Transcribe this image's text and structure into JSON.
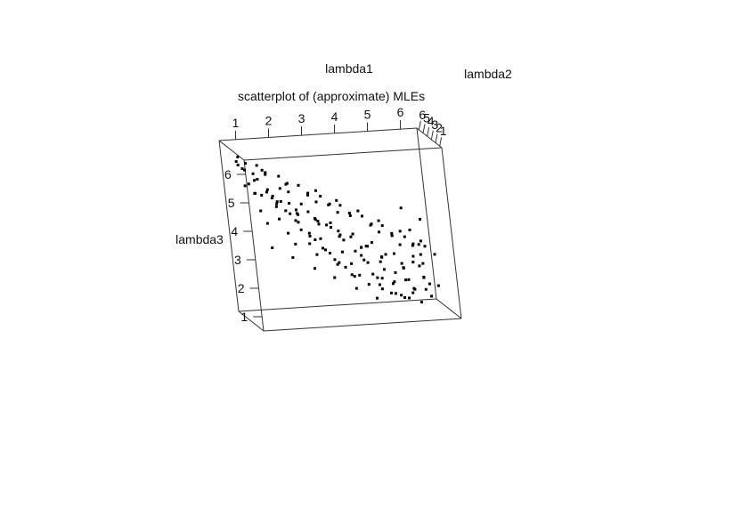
{
  "chart_data": {
    "type": "scatter",
    "projection": "3d",
    "title": "scatterplot of (approximate) MLEs",
    "xlabel": "lambda1",
    "ylabel": "lambda2",
    "zlabel": "lambda3",
    "x_ticks": [
      "1",
      "2",
      "3",
      "4",
      "5",
      "6"
    ],
    "y_ticks": [
      "1",
      "2",
      "3",
      "4",
      "5",
      "6"
    ],
    "z_ticks": [
      "1",
      "2",
      "3",
      "4",
      "5",
      "6"
    ],
    "xlim": [
      0.5,
      6.5
    ],
    "ylim": [
      0.5,
      6.5
    ],
    "zlim": [
      0.5,
      6.5
    ],
    "grid": false,
    "point_color": "#000000",
    "points": [
      [
        0.6,
        3.5,
        6.1
      ],
      [
        0.7,
        3.0,
        5.9
      ],
      [
        0.9,
        4.2,
        5.7
      ],
      [
        0.8,
        2.6,
        5.4
      ],
      [
        1.1,
        3.8,
        5.6
      ],
      [
        1.2,
        2.2,
        5.9
      ],
      [
        1.3,
        4.6,
        5.3
      ],
      [
        1.4,
        3.1,
        5.1
      ],
      [
        1.5,
        2.8,
        4.9
      ],
      [
        1.6,
        3.9,
        4.7
      ],
      [
        1.7,
        2.4,
        5.2
      ],
      [
        1.8,
        4.4,
        4.5
      ],
      [
        1.9,
        3.3,
        4.3
      ],
      [
        2.0,
        2.9,
        5.0
      ],
      [
        2.1,
        4.0,
        4.1
      ],
      [
        2.2,
        3.6,
        3.9
      ],
      [
        2.3,
        2.5,
        4.6
      ],
      [
        2.4,
        4.7,
        3.7
      ],
      [
        2.5,
        3.0,
        3.5
      ],
      [
        2.6,
        3.8,
        3.3
      ],
      [
        2.7,
        2.7,
        4.0
      ],
      [
        2.8,
        4.3,
        3.1
      ],
      [
        2.9,
        3.4,
        2.9
      ],
      [
        3.0,
        2.6,
        3.8
      ],
      [
        3.1,
        4.5,
        2.7
      ],
      [
        3.2,
        3.2,
        2.5
      ],
      [
        3.3,
        2.3,
        3.6
      ],
      [
        3.4,
        3.9,
        2.3
      ],
      [
        3.5,
        2.9,
        3.2
      ],
      [
        3.6,
        4.1,
        2.1
      ],
      [
        3.7,
        3.5,
        1.9
      ],
      [
        3.8,
        2.8,
        2.8
      ],
      [
        3.9,
        4.6,
        1.7
      ],
      [
        4.0,
        3.1,
        2.6
      ],
      [
        4.1,
        2.4,
        3.0
      ],
      [
        4.2,
        3.7,
        1.5
      ],
      [
        4.3,
        4.2,
        2.2
      ],
      [
        4.4,
        3.0,
        1.8
      ],
      [
        4.5,
        2.6,
        2.4
      ],
      [
        4.6,
        3.8,
        1.3
      ],
      [
        4.7,
        4.4,
        1.6
      ],
      [
        4.8,
        3.3,
        1.2
      ],
      [
        4.9,
        2.5,
        2.0
      ],
      [
        5.0,
        3.9,
        1.1
      ],
      [
        5.1,
        4.8,
        1.4
      ],
      [
        5.2,
        3.4,
        1.0
      ],
      [
        5.3,
        2.7,
        1.7
      ],
      [
        5.4,
        4.0,
        0.9
      ],
      [
        5.5,
        3.1,
        1.3
      ],
      [
        5.6,
        4.6,
        1.0
      ],
      [
        1.0,
        5.4,
        5.0
      ],
      [
        1.5,
        5.7,
        4.6
      ],
      [
        2.0,
        5.2,
        4.4
      ],
      [
        2.5,
        5.8,
        4.0
      ],
      [
        3.0,
        5.5,
        3.7
      ],
      [
        3.5,
        5.9,
        3.3
      ],
      [
        4.0,
        5.3,
        3.0
      ],
      [
        4.5,
        5.6,
        2.6
      ],
      [
        5.0,
        5.4,
        2.3
      ],
      [
        5.5,
        5.8,
        1.9
      ],
      [
        5.8,
        5.2,
        2.2
      ],
      [
        6.0,
        5.6,
        1.8
      ],
      [
        6.1,
        6.0,
        2.5
      ],
      [
        5.9,
        6.2,
        3.0
      ],
      [
        6.2,
        5.8,
        3.4
      ],
      [
        5.7,
        6.1,
        3.8
      ],
      [
        1.2,
        1.6,
        5.2
      ],
      [
        1.8,
        1.3,
        4.8
      ],
      [
        2.4,
        1.8,
        4.4
      ],
      [
        3.0,
        1.5,
        4.0
      ],
      [
        3.6,
        1.2,
        3.6
      ],
      [
        4.2,
        1.7,
        3.2
      ],
      [
        4.8,
        1.4,
        2.8
      ],
      [
        5.4,
        1.9,
        2.4
      ],
      [
        0.9,
        1.9,
        5.6
      ],
      [
        2.7,
        2.0,
        4.7
      ],
      [
        3.3,
        1.9,
        4.3
      ],
      [
        4.5,
        2.1,
        3.5
      ],
      [
        5.1,
        2.2,
        3.0
      ],
      [
        5.7,
        2.3,
        2.6
      ],
      [
        0.8,
        4.9,
        5.8
      ],
      [
        1.6,
        5.0,
        5.4
      ],
      [
        2.2,
        5.1,
        5.0
      ],
      [
        2.8,
        4.9,
        4.6
      ],
      [
        3.4,
        5.0,
        4.2
      ],
      [
        4.0,
        4.8,
        3.8
      ],
      [
        4.6,
        5.0,
        3.4
      ],
      [
        5.2,
        4.9,
        3.0
      ],
      [
        5.8,
        5.0,
        2.6
      ],
      [
        6.0,
        4.6,
        2.0
      ],
      [
        1.1,
        2.9,
        4.4
      ],
      [
        1.7,
        3.5,
        4.0
      ],
      [
        2.3,
        3.3,
        3.6
      ],
      [
        2.9,
        3.7,
        3.2
      ],
      [
        3.5,
        3.6,
        2.7
      ],
      [
        4.1,
        3.4,
        2.4
      ],
      [
        4.7,
        3.6,
        2.0
      ],
      [
        5.3,
        3.5,
        1.6
      ],
      [
        5.9,
        3.7,
        1.2
      ],
      [
        6.0,
        3.3,
        1.0
      ],
      [
        1.4,
        4.1,
        3.8
      ],
      [
        2.0,
        4.2,
        3.4
      ],
      [
        2.6,
        4.1,
        3.0
      ],
      [
        3.2,
        4.3,
        2.6
      ],
      [
        3.8,
        4.2,
        2.2
      ],
      [
        4.4,
        4.1,
        1.8
      ],
      [
        5.0,
        4.3,
        1.4
      ],
      [
        5.6,
        4.2,
        1.2
      ],
      [
        0.7,
        2.0,
        6.2
      ],
      [
        1.3,
        2.3,
        5.8
      ],
      [
        1.9,
        2.1,
        5.4
      ],
      [
        2.5,
        2.2,
        5.0
      ],
      [
        3.1,
        2.0,
        4.6
      ],
      [
        3.7,
        2.3,
        4.2
      ],
      [
        4.3,
        2.1,
        3.8
      ],
      [
        4.9,
        2.3,
        3.4
      ],
      [
        5.5,
        2.2,
        3.0
      ],
      [
        6.1,
        2.1,
        2.6
      ],
      [
        1.0,
        3.1,
        5.0
      ],
      [
        1.6,
        3.0,
        4.5
      ],
      [
        2.2,
        2.8,
        4.2
      ],
      [
        2.8,
        3.0,
        3.9
      ],
      [
        3.4,
        2.8,
        3.4
      ],
      [
        4.0,
        2.9,
        2.9
      ],
      [
        4.6,
        3.0,
        2.5
      ],
      [
        5.2,
        2.8,
        2.1
      ],
      [
        5.8,
        3.0,
        1.7
      ],
      [
        6.2,
        2.9,
        1.4
      ],
      [
        1.2,
        4.7,
        4.8
      ],
      [
        1.8,
        4.6,
        4.4
      ],
      [
        2.4,
        4.8,
        4.0
      ],
      [
        3.0,
        4.6,
        3.6
      ],
      [
        3.6,
        4.8,
        3.1
      ],
      [
        4.2,
        4.6,
        2.7
      ],
      [
        4.8,
        4.8,
        2.3
      ],
      [
        5.4,
        4.6,
        1.9
      ],
      [
        6.0,
        4.8,
        1.5
      ],
      [
        6.2,
        5.2,
        1.2
      ],
      [
        0.9,
        5.6,
        6.0
      ],
      [
        1.5,
        6.1,
        5.6
      ],
      [
        2.1,
        5.9,
        5.2
      ],
      [
        2.7,
        6.2,
        4.8
      ],
      [
        3.3,
        6.0,
        4.4
      ],
      [
        3.9,
        6.3,
        4.0
      ],
      [
        4.5,
        6.1,
        3.6
      ],
      [
        5.1,
        6.3,
        3.2
      ],
      [
        5.7,
        6.0,
        2.8
      ],
      [
        6.3,
        6.2,
        2.4
      ],
      [
        2.0,
        2.6,
        3.2
      ],
      [
        2.6,
        2.5,
        2.8
      ],
      [
        3.2,
        2.6,
        2.4
      ],
      [
        3.8,
        2.4,
        2.0
      ],
      [
        4.4,
        2.6,
        1.6
      ],
      [
        5.0,
        2.5,
        1.2
      ],
      [
        5.6,
        2.6,
        0.9
      ],
      [
        1.4,
        3.6,
        3.0
      ],
      [
        2.0,
        3.7,
        2.6
      ],
      [
        2.6,
        3.5,
        2.2
      ],
      [
        3.2,
        3.8,
        1.8
      ],
      [
        3.8,
        3.6,
        1.4
      ],
      [
        4.4,
        3.7,
        1.0
      ],
      [
        3.0,
        4.4,
        4.8
      ],
      [
        3.6,
        4.5,
        4.4
      ],
      [
        4.2,
        4.4,
        4.0
      ],
      [
        4.8,
        4.5,
        3.6
      ],
      [
        5.4,
        4.4,
        3.2
      ],
      [
        6.0,
        4.5,
        2.8
      ]
    ]
  }
}
